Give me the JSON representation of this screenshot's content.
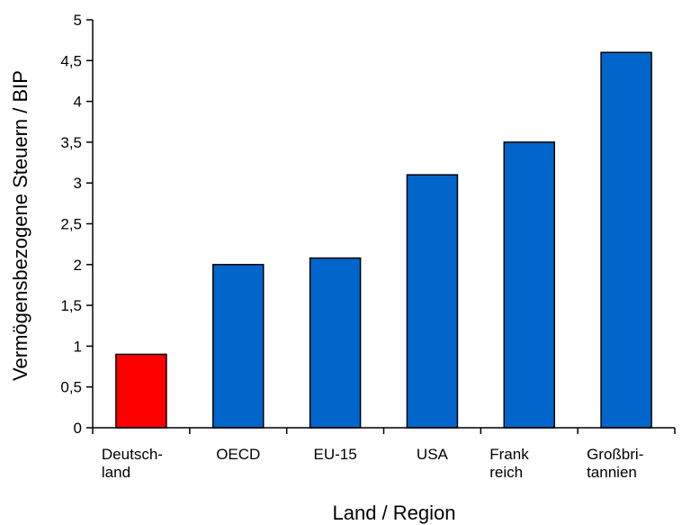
{
  "chart_data": {
    "type": "bar",
    "title": "",
    "xlabel": "Land / Region",
    "ylabel": "Vermögensbezogene Steuern / BIP",
    "ylim": [
      0,
      5
    ],
    "yticks": [
      "0",
      "0,5",
      "1",
      "1,5",
      "2",
      "2,5",
      "3",
      "3,5",
      "4",
      "4,5",
      "5"
    ],
    "categories": [
      [
        "Deutsch-",
        "land"
      ],
      [
        "OECD"
      ],
      [
        "EU-15"
      ],
      [
        "USA"
      ],
      [
        "Frank",
        "reich"
      ],
      [
        "Großbri-",
        "tannien"
      ]
    ],
    "values": [
      0.9,
      2.0,
      2.08,
      3.1,
      3.5,
      4.6
    ],
    "bar_colors": [
      "#ff0000",
      "#0066cc",
      "#0066cc",
      "#0066cc",
      "#0066cc",
      "#0066cc"
    ],
    "grid": false,
    "legend": "none"
  }
}
